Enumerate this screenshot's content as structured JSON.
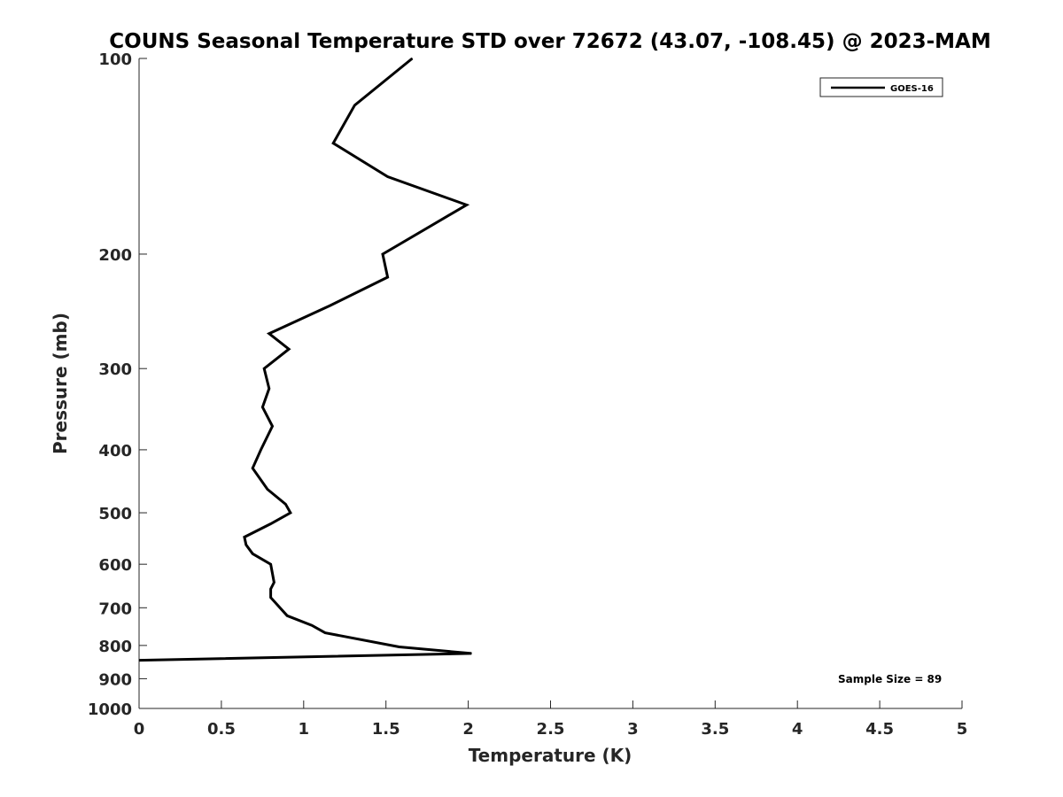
{
  "chart_data": {
    "type": "line",
    "title": "COUNS Seasonal Temperature STD over 72672 (43.07, -108.45) @ 2023-MAM",
    "xlabel": "Temperature (K)",
    "ylabel": "Pressure (mb)",
    "xlim": [
      0,
      5
    ],
    "ylim": [
      100,
      1000
    ],
    "y_scale": "log",
    "y_reversed": true,
    "x_ticks": [
      0,
      0.5,
      1,
      1.5,
      2,
      2.5,
      3,
      3.5,
      4,
      4.5,
      5
    ],
    "x_tick_labels": [
      "0",
      "0.5",
      "1",
      "1.5",
      "2",
      "2.5",
      "3",
      "3.5",
      "4",
      "4.5",
      "5"
    ],
    "y_ticks": [
      100,
      200,
      300,
      400,
      500,
      600,
      700,
      800,
      900,
      1000
    ],
    "y_tick_labels": [
      "100",
      "200",
      "300",
      "400",
      "500",
      "600",
      "700",
      "800",
      "900",
      "1000"
    ],
    "grid": false,
    "legend_position": "top-right",
    "series": [
      {
        "name": "GOES-16",
        "color": "#000000",
        "points": [
          {
            "x": 1.66,
            "y": 100
          },
          {
            "x": 1.31,
            "y": 118
          },
          {
            "x": 1.18,
            "y": 135
          },
          {
            "x": 1.51,
            "y": 152
          },
          {
            "x": 1.99,
            "y": 168
          },
          {
            "x": 1.48,
            "y": 200
          },
          {
            "x": 1.51,
            "y": 217
          },
          {
            "x": 1.16,
            "y": 240
          },
          {
            "x": 0.79,
            "y": 265
          },
          {
            "x": 0.91,
            "y": 280
          },
          {
            "x": 0.76,
            "y": 300
          },
          {
            "x": 0.79,
            "y": 322
          },
          {
            "x": 0.75,
            "y": 344
          },
          {
            "x": 0.81,
            "y": 368
          },
          {
            "x": 0.74,
            "y": 400
          },
          {
            "x": 0.69,
            "y": 427
          },
          {
            "x": 0.78,
            "y": 460
          },
          {
            "x": 0.89,
            "y": 485
          },
          {
            "x": 0.92,
            "y": 500
          },
          {
            "x": 0.8,
            "y": 520
          },
          {
            "x": 0.64,
            "y": 545
          },
          {
            "x": 0.65,
            "y": 560
          },
          {
            "x": 0.69,
            "y": 578
          },
          {
            "x": 0.8,
            "y": 600
          },
          {
            "x": 0.82,
            "y": 640
          },
          {
            "x": 0.8,
            "y": 655
          },
          {
            "x": 0.8,
            "y": 675
          },
          {
            "x": 0.9,
            "y": 720
          },
          {
            "x": 1.05,
            "y": 745
          },
          {
            "x": 1.13,
            "y": 765
          },
          {
            "x": 1.58,
            "y": 804
          },
          {
            "x": 2.02,
            "y": 823
          },
          {
            "x": 0.0,
            "y": 843
          }
        ]
      }
    ],
    "annotations": [
      "Sample Size = 89"
    ]
  }
}
